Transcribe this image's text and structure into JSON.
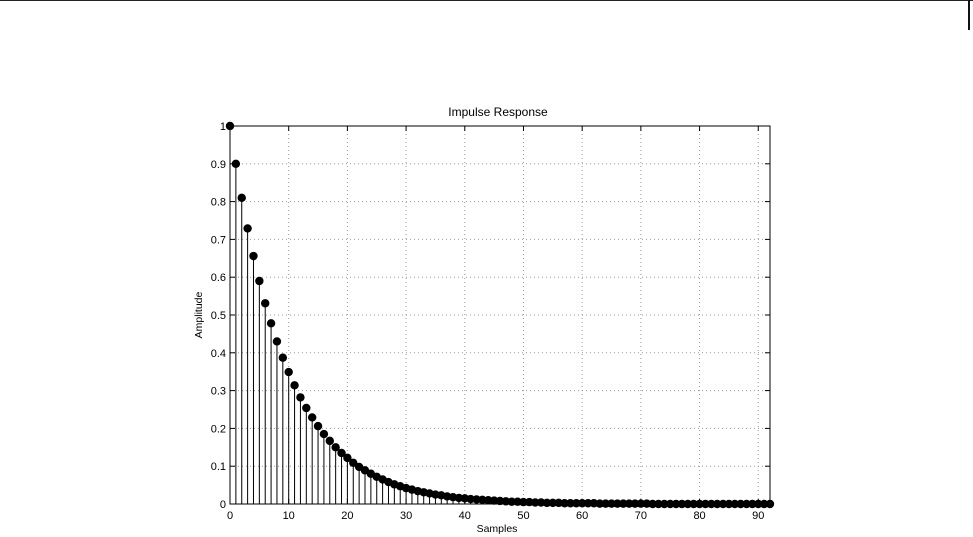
{
  "chart_data": {
    "type": "stem",
    "title": "Impulse Response",
    "xlabel": "Samples",
    "ylabel": "Amplitude",
    "xlim": [
      0,
      92
    ],
    "ylim": [
      0,
      1
    ],
    "grid": true,
    "xticks": [
      0,
      10,
      20,
      30,
      40,
      50,
      60,
      70,
      80,
      90
    ],
    "yticks": [
      0,
      0.1,
      0.2,
      0.3,
      0.4,
      0.5,
      0.6,
      0.7,
      0.8,
      0.9,
      1
    ],
    "x": [
      0,
      1,
      2,
      3,
      4,
      5,
      6,
      7,
      8,
      9,
      10,
      11,
      12,
      13,
      14,
      15,
      16,
      17,
      18,
      19,
      20,
      21,
      22,
      23,
      24,
      25,
      26,
      27,
      28,
      29,
      30,
      31,
      32,
      33,
      34,
      35,
      36,
      37,
      38,
      39,
      40,
      41,
      42,
      43,
      44,
      45,
      46,
      47,
      48,
      49,
      50,
      51,
      52,
      53,
      54,
      55,
      56,
      57,
      58,
      59,
      60,
      61,
      62,
      63,
      64,
      65,
      66,
      67,
      68,
      69,
      70,
      71,
      72,
      73,
      74,
      75,
      76,
      77,
      78,
      79,
      80,
      81,
      82,
      83,
      84,
      85,
      86,
      87,
      88,
      89,
      90,
      91,
      92
    ],
    "values": [
      1,
      0.9,
      0.81,
      0.729,
      0.656,
      0.59,
      0.531,
      0.478,
      0.43,
      0.387,
      0.349,
      0.314,
      0.282,
      0.254,
      0.229,
      0.206,
      0.185,
      0.167,
      0.15,
      0.135,
      0.122,
      0.109,
      0.098,
      0.089,
      0.08,
      0.072,
      0.065,
      0.058,
      0.052,
      0.047,
      0.042,
      0.038,
      0.034,
      0.031,
      0.028,
      0.025,
      0.023,
      0.02,
      0.018,
      0.016,
      0.015,
      0.013,
      0.012,
      0.011,
      0.01,
      0.009,
      0.008,
      0.007,
      0.006,
      0.006,
      0.005,
      0.005,
      0.004,
      0.004,
      0.003,
      0.003,
      0.003,
      0.002,
      0.002,
      0.002,
      0.002,
      0.002,
      0.002,
      0.001,
      0.001,
      0.001,
      0.001,
      0.001,
      0.001,
      0.001,
      0.001,
      0.001,
      0,
      0,
      0,
      0,
      0,
      0,
      0,
      0,
      0,
      0,
      0,
      0,
      0,
      0,
      0,
      0,
      0,
      0,
      0,
      0,
      0
    ],
    "marker_color": "#000000",
    "stem_color": "#000000",
    "grid_color": "#999999"
  }
}
